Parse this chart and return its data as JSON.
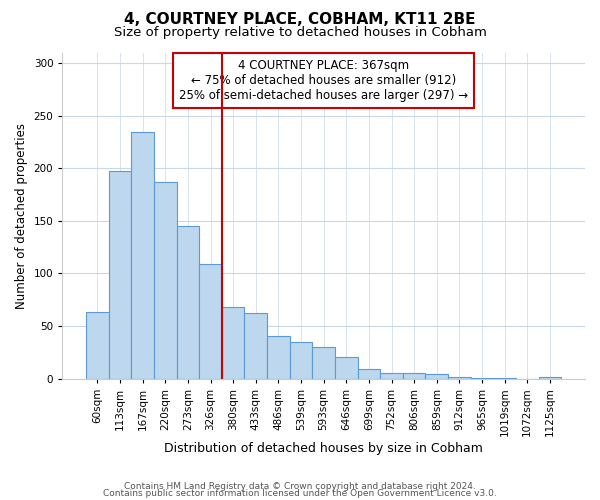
{
  "title": "4, COURTNEY PLACE, COBHAM, KT11 2BE",
  "subtitle": "Size of property relative to detached houses in Cobham",
  "xlabel": "Distribution of detached houses by size in Cobham",
  "ylabel": "Number of detached properties",
  "bar_labels": [
    "60sqm",
    "113sqm",
    "167sqm",
    "220sqm",
    "273sqm",
    "326sqm",
    "380sqm",
    "433sqm",
    "486sqm",
    "539sqm",
    "593sqm",
    "646sqm",
    "699sqm",
    "752sqm",
    "806sqm",
    "859sqm",
    "912sqm",
    "965sqm",
    "1019sqm",
    "1072sqm",
    "1125sqm"
  ],
  "bar_values": [
    63,
    197,
    234,
    187,
    145,
    109,
    68,
    62,
    41,
    35,
    30,
    21,
    9,
    5,
    5,
    4,
    2,
    1,
    1,
    0,
    2
  ],
  "bar_color": "#bdd7ee",
  "bar_edge_color": "#5b9bd5",
  "vline_color": "#cc0000",
  "vline_x_idx": 6,
  "annotation_line1": "4 COURTNEY PLACE: 367sqm",
  "annotation_line2": "← 75% of detached houses are smaller (912)",
  "annotation_line3": "25% of semi-detached houses are larger (297) →",
  "box_edge_color": "#cc0000",
  "ylim": [
    0,
    310
  ],
  "yticks": [
    0,
    50,
    100,
    150,
    200,
    250,
    300
  ],
  "footer_line1": "Contains HM Land Registry data © Crown copyright and database right 2024.",
  "footer_line2": "Contains public sector information licensed under the Open Government Licence v3.0.",
  "bg_color": "#ffffff",
  "grid_color": "#c8d8e8",
  "title_fontsize": 11,
  "subtitle_fontsize": 9.5,
  "xlabel_fontsize": 9,
  "ylabel_fontsize": 8.5,
  "tick_fontsize": 7.5,
  "annotation_fontsize": 8.5,
  "footer_fontsize": 6.5
}
